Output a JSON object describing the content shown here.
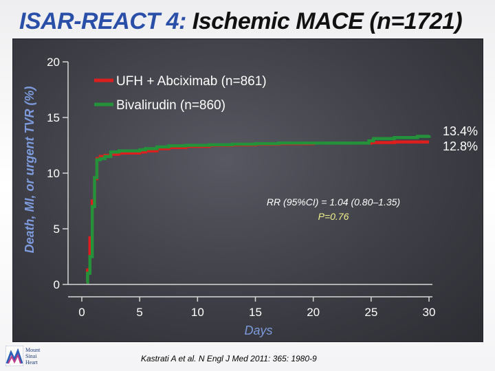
{
  "slide": {
    "title_accent": "ISAR-REACT 4:",
    "title_rest": " Ischemic MACE (n=1721)",
    "citation": "Kastrati A et al. N Engl J Med 2011: 365: 1980-9",
    "logo_words": [
      "Mount",
      "Sinai",
      "Heart"
    ]
  },
  "colors": {
    "accent": "#2a4fa8",
    "panel": "#46464e",
    "series_ufh": "#dd1e1e",
    "series_bival": "#23923a",
    "rr_text": "#ffffff",
    "p_text": "#f2f28c"
  },
  "chart_data": {
    "type": "line",
    "title": "",
    "xlabel": "Days",
    "ylabel": "Death, MI, or urgent TVR (%)",
    "xlim": [
      0,
      30
    ],
    "ylim": [
      0,
      20
    ],
    "xticks": [
      "0",
      "5",
      "10",
      "15",
      "20",
      "25",
      "30"
    ],
    "yticks": [
      "0",
      "5",
      "10",
      "15",
      "20"
    ],
    "grid": false,
    "legend": "top-left",
    "series": [
      {
        "name": "UFH + Abciximab (n=861)",
        "color": "#dd1e1e",
        "x": [
          0.4,
          0.5,
          0.7,
          0.9,
          1.1,
          1.3,
          1.6,
          2,
          2.5,
          3.2,
          4,
          5,
          5.5,
          6.5,
          7.5,
          9,
          11,
          13,
          15,
          17,
          20,
          23,
          25,
          26,
          27,
          29,
          30
        ],
        "y": [
          0.2,
          1.3,
          4.2,
          7.5,
          9.5,
          11.3,
          11.5,
          11.6,
          11.7,
          11.8,
          11.8,
          11.9,
          12.0,
          12.2,
          12.3,
          12.4,
          12.5,
          12.55,
          12.6,
          12.65,
          12.7,
          12.7,
          12.75,
          12.75,
          12.8,
          12.8,
          12.8
        ],
        "end_label": "12.8%"
      },
      {
        "name": "Bivalirudin (n=860)",
        "color": "#23923a",
        "x": [
          0.4,
          0.5,
          0.7,
          0.9,
          1.1,
          1.3,
          1.6,
          2,
          2.5,
          3.2,
          4,
          5,
          5.5,
          6.5,
          7.5,
          9,
          11,
          13,
          15,
          17,
          20,
          23,
          24.8,
          25.2,
          27,
          29,
          30
        ],
        "y": [
          0.2,
          1.0,
          2.5,
          7.0,
          9.6,
          11.2,
          11.3,
          11.5,
          11.9,
          12.0,
          12.0,
          12.1,
          12.2,
          12.35,
          12.45,
          12.5,
          12.55,
          12.6,
          12.65,
          12.7,
          12.7,
          12.7,
          12.9,
          13.1,
          13.2,
          13.3,
          13.4
        ],
        "end_label": "13.4%"
      }
    ],
    "annotations": {
      "rr": "RR (95%CI) = 1.04 (0.80–1.35)",
      "p": "P=0.76"
    }
  }
}
